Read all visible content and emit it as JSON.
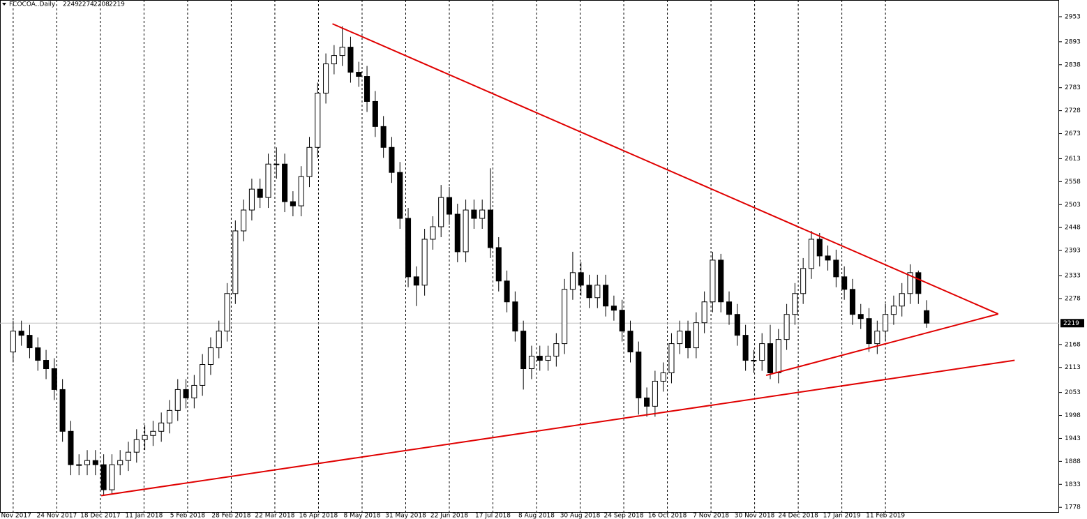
{
  "chart_data": {
    "type": "candlestick",
    "title": "FCOCOA..Daily",
    "color_up": "#ffffff",
    "color_down": "#000000",
    "open": [
      2150,
      2200,
      2190,
      2160,
      2130,
      2110,
      2060,
      1960,
      1880,
      1880,
      1890,
      1880,
      1820,
      1880,
      1890,
      1910,
      1940,
      1950,
      1960,
      1980,
      2010,
      2060,
      2040,
      2070,
      2120,
      2160,
      2200,
      2290,
      2440,
      2490,
      2540,
      2520,
      2600,
      2600,
      2510,
      2500,
      2570,
      2640,
      2770,
      2840,
      2860,
      2880,
      2820,
      2810,
      2750,
      2690,
      2640,
      2580,
      2470,
      2330,
      2310,
      2420,
      2450,
      2520,
      2480,
      2390,
      2490,
      2470,
      2490,
      2400,
      2320,
      2270,
      2200,
      2110,
      2140,
      2130,
      2140,
      2170,
      2300,
      2340,
      2310,
      2280,
      2310,
      2260,
      2250,
      2200,
      2150,
      2040,
      2020,
      2080,
      2100,
      2170,
      2200,
      2160,
      2220,
      2270,
      2370,
      2270,
      2240,
      2190,
      2130,
      2130,
      2170,
      2100,
      2180,
      2240,
      2290,
      2350,
      2420,
      2380,
      2370,
      2330,
      2300,
      2240,
      2230,
      2170,
      2200,
      2240,
      2260,
      2290,
      2340,
      2249
    ],
    "high": [
      2225,
      2225,
      2215,
      2185,
      2155,
      2135,
      2085,
      1985,
      1905,
      1915,
      1915,
      1905,
      1905,
      1915,
      1935,
      1965,
      1975,
      1985,
      2005,
      2035,
      2085,
      2085,
      2095,
      2145,
      2185,
      2225,
      2315,
      2465,
      2515,
      2565,
      2565,
      2625,
      2640,
      2625,
      2535,
      2595,
      2665,
      2795,
      2865,
      2885,
      2930,
      2905,
      2845,
      2835,
      2775,
      2715,
      2665,
      2605,
      2495,
      2355,
      2445,
      2475,
      2550,
      2545,
      2505,
      2515,
      2515,
      2515,
      2590,
      2425,
      2345,
      2295,
      2225,
      2165,
      2165,
      2165,
      2195,
      2325,
      2390,
      2365,
      2335,
      2335,
      2335,
      2285,
      2275,
      2225,
      2175,
      2065,
      2105,
      2125,
      2195,
      2225,
      2225,
      2245,
      2295,
      2390,
      2385,
      2295,
      2265,
      2215,
      2155,
      2195,
      2215,
      2205,
      2265,
      2315,
      2375,
      2440,
      2435,
      2405,
      2395,
      2355,
      2325,
      2265,
      2255,
      2225,
      2265,
      2285,
      2315,
      2360,
      2345,
      2274
    ],
    "low": [
      2125,
      2165,
      2135,
      2105,
      2085,
      2035,
      1935,
      1855,
      1855,
      1855,
      1855,
      1806,
      1810,
      1855,
      1865,
      1885,
      1915,
      1925,
      1935,
      1955,
      1985,
      2015,
      2015,
      2045,
      2095,
      2135,
      2175,
      2265,
      2415,
      2465,
      2495,
      2495,
      2565,
      2485,
      2475,
      2475,
      2545,
      2615,
      2745,
      2815,
      2835,
      2795,
      2785,
      2725,
      2665,
      2615,
      2555,
      2445,
      2305,
      2260,
      2285,
      2395,
      2425,
      2455,
      2365,
      2365,
      2445,
      2445,
      2375,
      2295,
      2245,
      2175,
      2060,
      2085,
      2105,
      2105,
      2115,
      2145,
      2275,
      2285,
      2255,
      2255,
      2235,
      2225,
      2175,
      2125,
      2000,
      1995,
      1995,
      2055,
      2075,
      2145,
      2135,
      2135,
      2195,
      2245,
      2245,
      2215,
      2165,
      2105,
      2100,
      2105,
      2085,
      2075,
      2155,
      2215,
      2265,
      2325,
      2355,
      2345,
      2305,
      2275,
      2215,
      2205,
      2150,
      2145,
      2175,
      2215,
      2235,
      2265,
      2265,
      2208
    ],
    "close": [
      2200,
      2190,
      2160,
      2130,
      2110,
      2060,
      1960,
      1880,
      1880,
      1890,
      1880,
      1820,
      1880,
      1890,
      1910,
      1940,
      1950,
      1960,
      1980,
      2010,
      2060,
      2040,
      2070,
      2120,
      2160,
      2200,
      2290,
      2440,
      2490,
      2540,
      2520,
      2600,
      2600,
      2510,
      2500,
      2570,
      2640,
      2770,
      2840,
      2860,
      2880,
      2820,
      2810,
      2750,
      2690,
      2640,
      2580,
      2470,
      2330,
      2310,
      2420,
      2450,
      2520,
      2480,
      2390,
      2490,
      2470,
      2490,
      2400,
      2320,
      2270,
      2200,
      2110,
      2140,
      2130,
      2140,
      2170,
      2300,
      2340,
      2310,
      2280,
      2310,
      2260,
      2250,
      2200,
      2150,
      2040,
      2020,
      2080,
      2100,
      2170,
      2200,
      2160,
      2220,
      2270,
      2370,
      2270,
      2240,
      2190,
      2130,
      2130,
      2170,
      2100,
      2180,
      2240,
      2290,
      2350,
      2420,
      2380,
      2370,
      2330,
      2300,
      2240,
      2230,
      2170,
      2200,
      2240,
      2260,
      2290,
      2340,
      2290,
      2219
    ],
    "xlim": [
      -1.6,
      127.1
    ],
    "xticks": [
      {
        "value": 0,
        "label": "1 Nov 2017"
      },
      {
        "value": 5.3,
        "label": "24 Nov 2017"
      },
      {
        "value": 10.6,
        "label": "18 Dec 2017"
      },
      {
        "value": 15.9,
        "label": "11 Jan 2018"
      },
      {
        "value": 21.2,
        "label": "5 Feb 2018"
      },
      {
        "value": 26.5,
        "label": "28 Feb 2018"
      },
      {
        "value": 31.8,
        "label": "22 Mar 2018"
      },
      {
        "value": 37.1,
        "label": "16 Apr 2018"
      },
      {
        "value": 42.4,
        "label": "8 May 2018"
      },
      {
        "value": 47.7,
        "label": "31 May 2018"
      },
      {
        "value": 53,
        "label": "22 Jun 2018"
      },
      {
        "value": 58.3,
        "label": "17 Jul 2018"
      },
      {
        "value": 63.6,
        "label": "8 Aug 2018"
      },
      {
        "value": 68.9,
        "label": "30 Aug 2018"
      },
      {
        "value": 74.2,
        "label": "24 Sep 2018"
      },
      {
        "value": 79.5,
        "label": "16 Oct 2018"
      },
      {
        "value": 84.8,
        "label": "7 Nov 2018"
      },
      {
        "value": 90.1,
        "label": "30 Nov 2018"
      },
      {
        "value": 95.4,
        "label": "24 Dec 2018"
      },
      {
        "value": 100.7,
        "label": "17 Jan 2019"
      },
      {
        "value": 106,
        "label": "11 Feb 2019"
      }
    ],
    "ylim": [
      1765,
      2993
    ],
    "yticks": [
      2953,
      2893,
      2838,
      2783,
      2728,
      2673,
      2613,
      2558,
      2503,
      2448,
      2393,
      2333,
      2278,
      2168,
      2113,
      2053,
      1998,
      1943,
      1888,
      1833,
      1778
    ],
    "trendline_color": "#e00000",
    "trendlines": [
      {
        "x": [
          38.8,
          119.7
        ],
        "y": [
          2936,
          2241
        ]
      },
      {
        "x": [
          91.5,
          119.7
        ],
        "y": [
          2094,
          2241
        ]
      },
      {
        "x": [
          10.7,
          121.7
        ],
        "y": [
          1806,
          2130
        ]
      }
    ]
  }
}
